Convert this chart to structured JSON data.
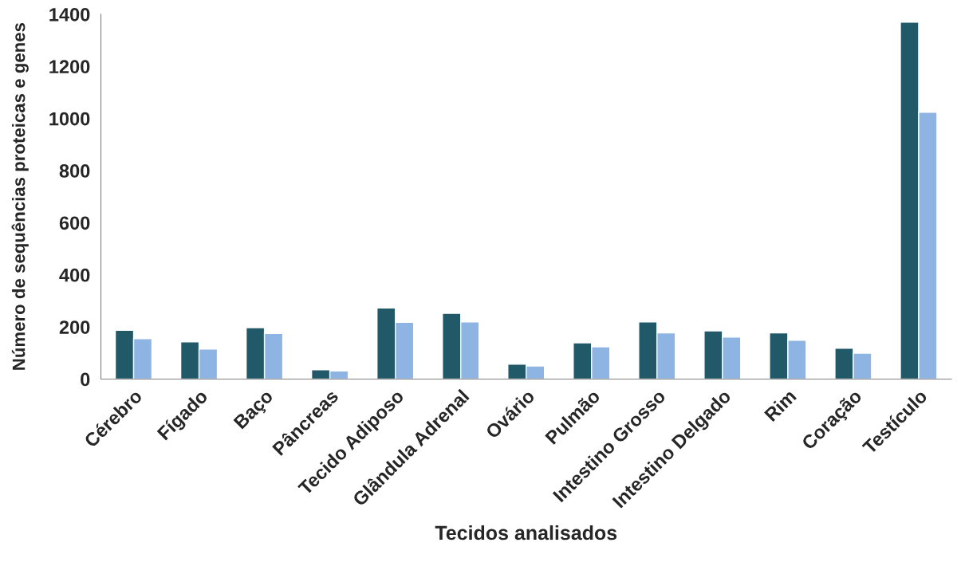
{
  "chart_data": {
    "type": "bar",
    "xlabel": "Tecidos analisados",
    "ylabel": "Número de sequências proteicas e genes",
    "categories": [
      "Cérebro",
      "Fígado",
      "Baço",
      "Pâncreas",
      "Tecido Adiposo",
      "Glândula Adrenal",
      "Ovário",
      "Pulmão",
      "Intestino Grosso",
      "Intestino Delgado",
      "Rim",
      "Coração",
      "Testículo"
    ],
    "series": [
      {
        "color": "#215968",
        "values": [
          187,
          143,
          197,
          36,
          273,
          252,
          57,
          139,
          219,
          185,
          177,
          118,
          1370
        ]
      },
      {
        "color": "#8eb4e3",
        "values": [
          155,
          115,
          175,
          31,
          218,
          219,
          50,
          124,
          177,
          161,
          149,
          99,
          1024
        ]
      }
    ],
    "ylim": [
      0,
      1400
    ],
    "yticks": [
      0,
      200,
      400,
      600,
      800,
      1000,
      1200,
      1400
    ],
    "grid": false
  }
}
